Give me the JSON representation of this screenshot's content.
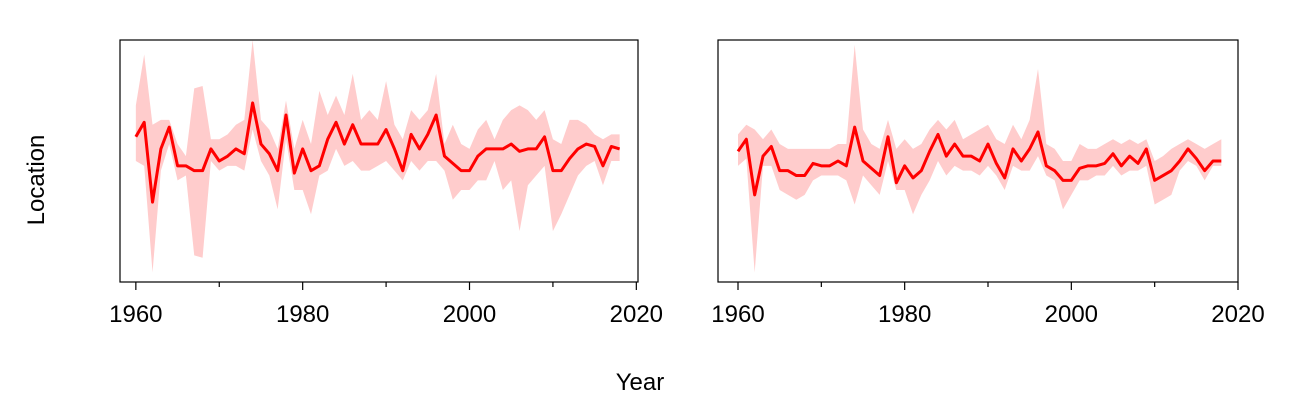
{
  "xlabel": "Year",
  "ylabel": "Location",
  "chart_data": [
    {
      "type": "line",
      "color": "#ff0000",
      "band_color": "#ffcccc",
      "xlim": [
        1958.1,
        2020.2
      ],
      "xticks": [
        1960,
        1980,
        2000,
        2020
      ],
      "xminorticks": [
        1970,
        1990,
        2010
      ],
      "ylim": [
        0,
        100
      ],
      "x": [
        1960,
        1961,
        1962,
        1963,
        1964,
        1965,
        1966,
        1967,
        1968,
        1969,
        1970,
        1971,
        1972,
        1973,
        1974,
        1975,
        1976,
        1977,
        1978,
        1979,
        1980,
        1981,
        1982,
        1983,
        1984,
        1985,
        1986,
        1987,
        1988,
        1989,
        1990,
        1991,
        1992,
        1993,
        1994,
        1995,
        1996,
        1997,
        1998,
        1999,
        2000,
        2001,
        2002,
        2003,
        2004,
        2005,
        2006,
        2007,
        2008,
        2009,
        2010,
        2011,
        2012,
        2013,
        2014,
        2015,
        2016,
        2017,
        2018
      ],
      "values": [
        60,
        66,
        33,
        55,
        64,
        48,
        48,
        46,
        46,
        55,
        50,
        52,
        55,
        53,
        74,
        57,
        53,
        46,
        69,
        45,
        55,
        46,
        48,
        59,
        66,
        57,
        65,
        57,
        57,
        57,
        63,
        55,
        46,
        61,
        55,
        61,
        69,
        52,
        49,
        46,
        46,
        52,
        55,
        55,
        55,
        57,
        54,
        55,
        55,
        60,
        46,
        46,
        51,
        55,
        57,
        56,
        48,
        56,
        55
      ],
      "band_upper": [
        73,
        94,
        65,
        67,
        67,
        57,
        52,
        80,
        81,
        59,
        59,
        61,
        65,
        67,
        100,
        67,
        63,
        55,
        75,
        55,
        67,
        57,
        79,
        69,
        77,
        69,
        86,
        67,
        71,
        67,
        83,
        65,
        59,
        71,
        67,
        71,
        86,
        57,
        65,
        57,
        55,
        63,
        67,
        59,
        67,
        71,
        73,
        71,
        67,
        71,
        59,
        57,
        67,
        67,
        65,
        61,
        59,
        61,
        61
      ],
      "band_lower": [
        50,
        48,
        4,
        46,
        57,
        42,
        44,
        11,
        10,
        50,
        46,
        48,
        48,
        46,
        63,
        50,
        44,
        30,
        59,
        38,
        38,
        28,
        44,
        46,
        55,
        48,
        50,
        46,
        46,
        48,
        50,
        46,
        42,
        50,
        46,
        50,
        50,
        46,
        34,
        38,
        38,
        42,
        42,
        50,
        38,
        42,
        21,
        40,
        44,
        48,
        21,
        28,
        36,
        44,
        48,
        50,
        40,
        50,
        50
      ]
    },
    {
      "type": "line",
      "color": "#ff0000",
      "band_color": "#ffcccc",
      "xlim": [
        1957.6,
        2020
      ],
      "xticks": [
        1960,
        1980,
        2000,
        2020
      ],
      "xminorticks": [
        1970,
        1990,
        2010
      ],
      "ylim": [
        0,
        100
      ],
      "x": [
        1960,
        1961,
        1962,
        1963,
        1964,
        1965,
        1966,
        1967,
        1968,
        1969,
        1970,
        1971,
        1972,
        1973,
        1974,
        1975,
        1976,
        1977,
        1978,
        1979,
        1980,
        1981,
        1982,
        1983,
        1984,
        1985,
        1986,
        1987,
        1988,
        1989,
        1990,
        1991,
        1992,
        1993,
        1994,
        1995,
        1996,
        1997,
        1998,
        1999,
        2000,
        2001,
        2002,
        2003,
        2004,
        2005,
        2006,
        2007,
        2008,
        2009,
        2010,
        2011,
        2012,
        2013,
        2014,
        2015,
        2016,
        2017,
        2018
      ],
      "values": [
        54,
        59,
        36,
        52,
        56,
        46,
        46,
        44,
        44,
        49,
        48,
        48,
        50,
        48,
        64,
        50,
        47,
        44,
        60,
        41,
        48,
        43,
        46,
        54,
        61,
        52,
        57,
        52,
        52,
        50,
        57,
        49,
        43,
        55,
        50,
        55,
        62,
        48,
        46,
        42,
        42,
        47,
        48,
        48,
        49,
        53,
        48,
        52,
        49,
        55,
        42,
        44,
        46,
        50,
        55,
        51,
        46,
        50,
        50
      ],
      "band_upper": [
        61,
        65,
        63,
        59,
        63,
        57,
        55,
        55,
        55,
        55,
        55,
        55,
        57,
        57,
        98,
        63,
        57,
        55,
        67,
        55,
        59,
        55,
        57,
        63,
        67,
        63,
        67,
        59,
        61,
        63,
        65,
        59,
        57,
        65,
        59,
        67,
        88,
        57,
        55,
        50,
        50,
        57,
        55,
        55,
        57,
        59,
        57,
        59,
        57,
        59,
        50,
        52,
        55,
        57,
        59,
        57,
        55,
        57,
        59
      ],
      "band_lower": [
        48,
        51,
        4,
        48,
        48,
        38,
        36,
        34,
        36,
        42,
        44,
        44,
        44,
        42,
        32,
        44,
        40,
        36,
        50,
        38,
        38,
        28,
        36,
        42,
        50,
        44,
        48,
        46,
        46,
        44,
        48,
        44,
        38,
        48,
        46,
        46,
        52,
        44,
        42,
        30,
        36,
        42,
        42,
        44,
        44,
        48,
        44,
        46,
        46,
        48,
        32,
        34,
        36,
        46,
        50,
        48,
        42,
        48,
        48
      ]
    }
  ]
}
